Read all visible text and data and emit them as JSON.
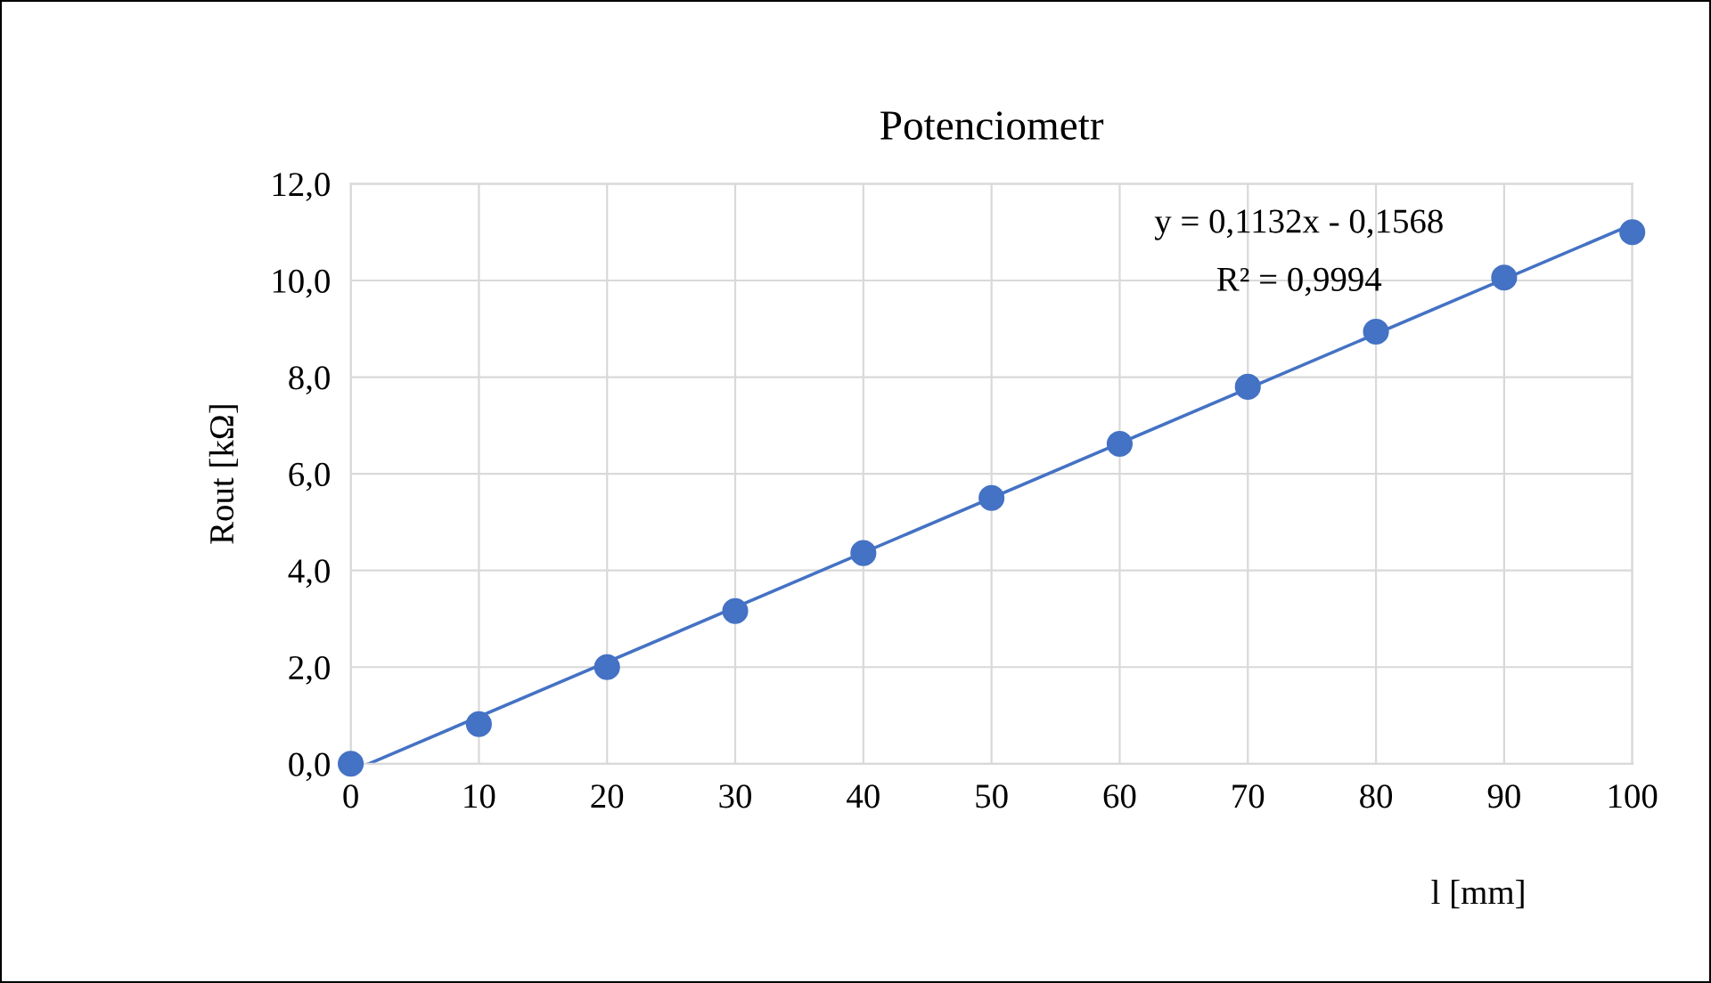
{
  "chart_data": {
    "type": "line",
    "title": "Potenciometr",
    "xlabel": "l [mm]",
    "ylabel": "Rout [kΩ]",
    "annotations": [
      "y = 0,1132x - 0,1568",
      "R² = 0,9994"
    ],
    "series": [
      {
        "type": "scatter",
        "marker": "circle",
        "color": "#4472c4",
        "x": [
          0,
          10,
          20,
          30,
          40,
          50,
          60,
          70,
          80,
          90,
          100
        ],
        "values": [
          0.0,
          0.82,
          2.0,
          3.16,
          4.36,
          5.5,
          6.62,
          7.8,
          8.94,
          10.06,
          11.0
        ]
      },
      {
        "marker": "none",
        "color": "#4472c4",
        "x": [
          1.4,
          100
        ],
        "values": [
          0.0,
          11.16
        ]
      }
    ],
    "xlim": [
      0,
      100
    ],
    "xticks": [
      0,
      10,
      20,
      30,
      40,
      50,
      60,
      70,
      80,
      90,
      100
    ],
    "ylim": [
      0,
      12
    ],
    "yticks": [
      {
        "value": 0,
        "label": "0,0"
      },
      {
        "value": 2,
        "label": "2,0"
      },
      {
        "value": 4,
        "label": "4,0"
      },
      {
        "value": 6,
        "label": "6,0"
      },
      {
        "value": 8,
        "label": "8,0"
      },
      {
        "value": 10,
        "label": "10,0"
      },
      {
        "value": 12,
        "label": "12,0"
      }
    ],
    "grid": true,
    "line_style": "solid"
  }
}
